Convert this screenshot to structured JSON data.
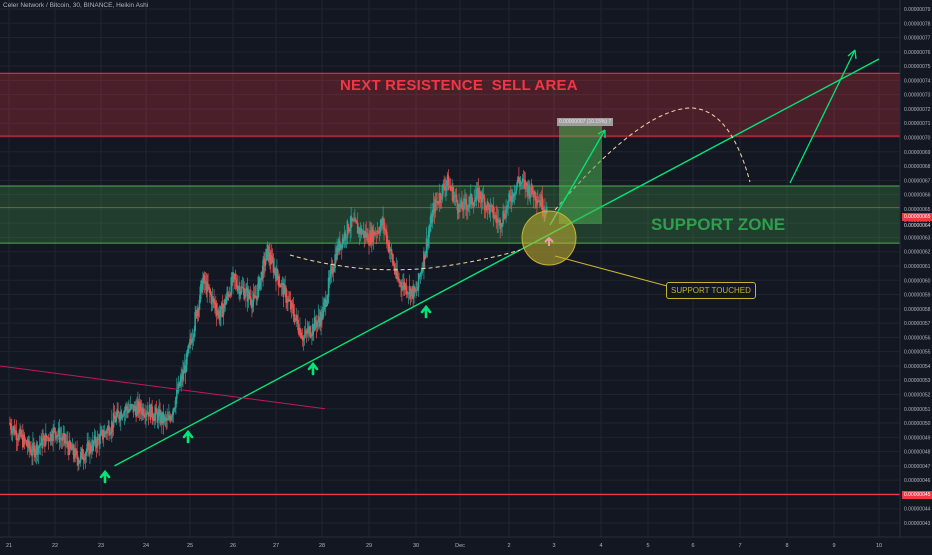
{
  "header": {
    "title": "Celer Network / Bitcoin, 30, BINANCE, Heikin Ashi"
  },
  "annotations": {
    "resistance_label": "NEXT RESISTENCE  SELL AREA",
    "support_label": "SUPPORT ZONE",
    "support_touched_label": "SUPPORT TOUCHED",
    "measure_label": "0.00000007 (10.15%) 7"
  },
  "price_tags": {
    "current_price": "0.00000065",
    "current_price_b": "0.00000064",
    "red_line_price": "0.00000045"
  },
  "colors": {
    "background": "#131722",
    "up": "#26a69a",
    "down": "#ef5350",
    "resistance_zone": "#f23645",
    "support_zone": "#4caf50",
    "trendline": "#00e676",
    "annotation_yellow": "#c7b430"
  },
  "chart_data": {
    "type": "candlestick",
    "symbol": "Celer Network / Bitcoin",
    "timeframe": "30",
    "exchange": "BINANCE",
    "candle_style": "Heikin Ashi",
    "x_tick_labels": [
      "21",
      "22",
      "23",
      "24",
      "25",
      "26",
      "27",
      "28",
      "29",
      "30",
      "Dec",
      "2",
      "3",
      "4",
      "5",
      "6",
      "7",
      "8",
      "9",
      "10"
    ],
    "y_tick_labels": [
      "0.00000079",
      "0.00000078",
      "0.00000077",
      "0.00000076",
      "0.00000075",
      "0.00000074",
      "0.00000073",
      "0.00000072",
      "0.00000071",
      "0.00000070",
      "0.00000069",
      "0.00000068",
      "0.00000067",
      "0.00000066",
      "0.00000065",
      "0.00000064",
      "0.00000063",
      "0.00000062",
      "0.00000061",
      "0.00000060",
      "0.00000059",
      "0.00000058",
      "0.00000057",
      "0.00000056",
      "0.00000055",
      "0.00000054",
      "0.00000053",
      "0.00000052",
      "0.00000051",
      "0.00000050",
      "0.00000049",
      "0.00000048",
      "0.00000047",
      "0.00000046",
      "0.00000045",
      "0.00000044",
      "0.00000043"
    ],
    "price_path": [
      {
        "t": 21.0,
        "p": 5e-07
      },
      {
        "t": 21.5,
        "p": 4.8e-07
      },
      {
        "t": 22.0,
        "p": 4.95e-07
      },
      {
        "t": 22.5,
        "p": 4.75e-07
      },
      {
        "t": 23.0,
        "p": 4.9e-07
      },
      {
        "t": 23.5,
        "p": 5.1e-07
      },
      {
        "t": 24.0,
        "p": 5.1e-07
      },
      {
        "t": 24.5,
        "p": 5e-07
      },
      {
        "t": 24.9,
        "p": 5.4e-07
      },
      {
        "t": 25.3,
        "p": 6e-07
      },
      {
        "t": 25.7,
        "p": 5.75e-07
      },
      {
        "t": 26.0,
        "p": 6e-07
      },
      {
        "t": 26.5,
        "p": 5.85e-07
      },
      {
        "t": 26.8,
        "p": 6.2e-07
      },
      {
        "t": 27.2,
        "p": 5.9e-07
      },
      {
        "t": 27.6,
        "p": 5.6e-07
      },
      {
        "t": 28.0,
        "p": 5.75e-07
      },
      {
        "t": 28.3,
        "p": 6.2e-07
      },
      {
        "t": 28.6,
        "p": 6.4e-07
      },
      {
        "t": 29.0,
        "p": 6.3e-07
      },
      {
        "t": 29.3,
        "p": 6.4e-07
      },
      {
        "t": 29.6,
        "p": 6e-07
      },
      {
        "t": 30.0,
        "p": 5.9e-07
      },
      {
        "t": 30.4,
        "p": 6.5e-07
      },
      {
        "t": 30.7,
        "p": 6.7e-07
      },
      {
        "t": 31.0,
        "p": 6.5e-07
      },
      {
        "t": 31.4,
        "p": 6.6e-07
      },
      {
        "t": 31.8,
        "p": 6.4e-07
      },
      {
        "t": 32.2,
        "p": 6.7e-07
      },
      {
        "t": 32.6,
        "p": 6.6e-07
      },
      {
        "t": 32.85,
        "p": 6.5e-07
      }
    ],
    "zones": [
      {
        "kind": "resistance",
        "from": 7.01e-07,
        "to": 7.45e-07
      },
      {
        "kind": "support",
        "from": 6.26e-07,
        "to": 6.66e-07
      }
    ],
    "trendline": {
      "start": {
        "t": 23.3,
        "p": 4.7e-07
      },
      "end": {
        "t": 40.0,
        "p": 7.55e-07
      }
    },
    "red_trendline": {
      "start": {
        "t": 20.0,
        "p": 5.4e-07
      },
      "end": {
        "t": 27.5,
        "p": 5.1e-07
      }
    },
    "horizontal_line": 4.5e-07,
    "grid": true
  }
}
